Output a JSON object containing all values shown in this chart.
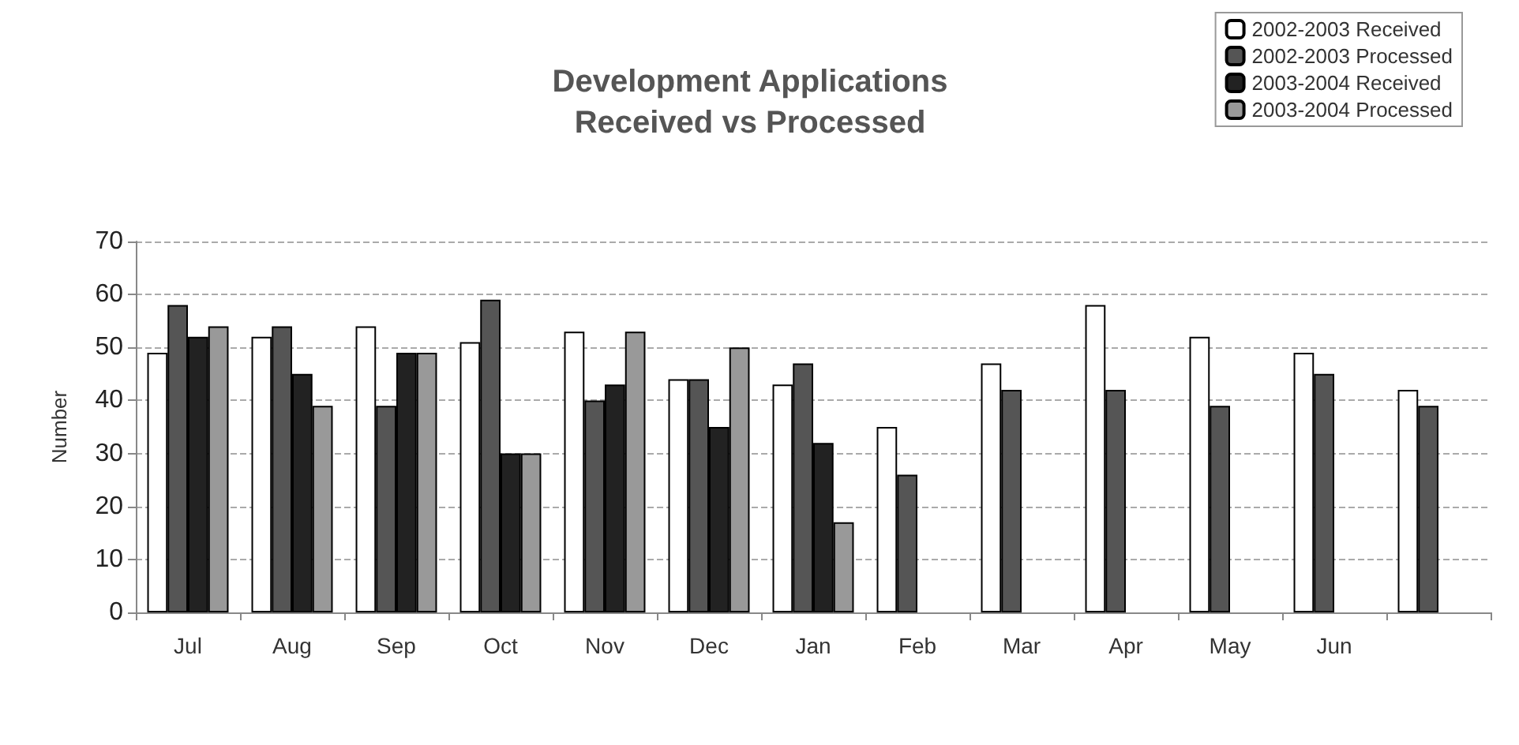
{
  "chart_data": {
    "type": "bar",
    "title": "Development Applications\nReceived vs Processed",
    "ylabel": "Number",
    "categories": [
      "Jul",
      "Aug",
      "Sep",
      "Oct",
      "Nov",
      "Dec",
      "Jan",
      "Feb",
      "Mar",
      "Apr",
      "May",
      "Jun",
      null
    ],
    "series": [
      {
        "name": "2002-2003 Received",
        "color": "#ffffff",
        "values": [
          49,
          52,
          54,
          51,
          53,
          44,
          43,
          35,
          47,
          58,
          52,
          49,
          42
        ]
      },
      {
        "name": "2002-2003 Processed",
        "color": "#555555",
        "values": [
          58,
          54,
          39,
          59,
          40,
          44,
          47,
          26,
          42,
          42,
          39,
          45,
          39
        ]
      },
      {
        "name": "2003-2004 Received",
        "color": "#222222",
        "values": [
          52,
          45,
          49,
          30,
          43,
          35,
          32,
          null,
          null,
          null,
          null,
          null,
          null
        ]
      },
      {
        "name": "2003-2004 Processed",
        "color": "#999999",
        "values": [
          54,
          39,
          49,
          30,
          53,
          50,
          17,
          null,
          null,
          null,
          null,
          null,
          null
        ]
      }
    ],
    "ylim": [
      0,
      70
    ],
    "yticks": [
      0,
      10,
      20,
      30,
      40,
      50,
      60,
      70
    ],
    "grid": "y",
    "legend": "top right"
  }
}
